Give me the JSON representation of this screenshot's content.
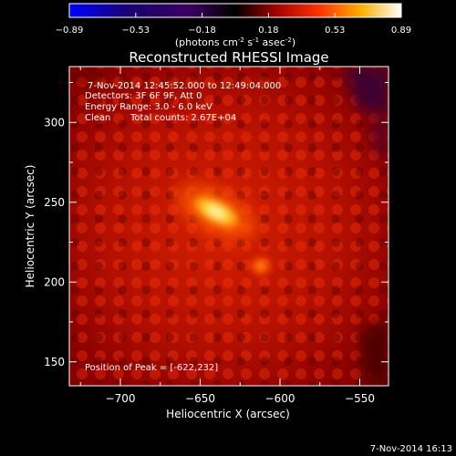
{
  "chart_data": {
    "type": "heatmap",
    "title": "Reconstructed RHESSI Image",
    "xlabel": "Heliocentric X (arcsec)",
    "ylabel": "Heliocentric Y (arcsec)",
    "xlim": [
      -732,
      -532
    ],
    "ylim": [
      135,
      335
    ],
    "xticks": [
      -700,
      -650,
      -600,
      -550
    ],
    "yticks": [
      150,
      200,
      250,
      300
    ],
    "colorbar": {
      "ticks": [
        "-0.89",
        "-0.53",
        "-0.18",
        "0.18",
        "0.53",
        "0.89"
      ],
      "range": [
        -0.89,
        0.89
      ],
      "colormap": "blue-black-red-yellow-white"
    },
    "sources": [
      {
        "x": -640,
        "y": 244,
        "value": 0.89
      },
      {
        "x": -612,
        "y": 210,
        "value": 0.55
      }
    ],
    "peak": {
      "x": -622,
      "y": 232
    }
  },
  "colorbar_units": {
    "base": "(photons cm",
    "exp1": "-2",
    "mid1": " s",
    "exp2": "-1",
    "mid2": " asec",
    "exp3": "-2",
    "end": ")"
  },
  "annotations": {
    "time_range": "7-Nov-2014 12:45:52.000 to 12:49:04.000",
    "detectors": "Detectors: 3F 6F 9F, Att 0",
    "energy": "Energy Range: 3.0 - 6.0 keV",
    "method": "Clean",
    "counts": "Total counts: 2.67E+04",
    "peak_text": "Position of Peak = [-622,232]"
  },
  "footer": {
    "timestamp": "7-Nov-2014 16:13"
  },
  "colors": {
    "background": "#000000",
    "text": "#ffffff"
  }
}
